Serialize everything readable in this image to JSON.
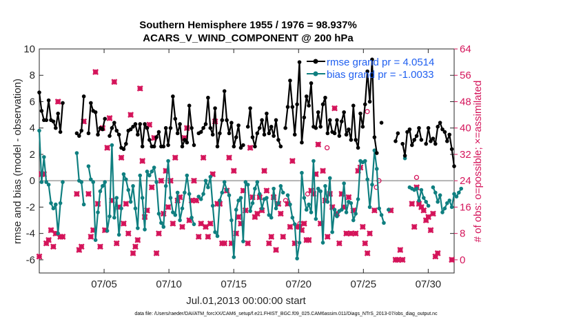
{
  "chart_data": {
    "type": "line",
    "title_line1": "Southern Hemisphere 1955 / 1976 = 98.937%",
    "title_line2": "ACARS_V_WIND_COMPONENT @ 200 hPa",
    "ylabel_left": "rmse and bias (model - observation)",
    "ylabel_right": "# of obs: o=possible; ×=assimilated",
    "xlabel": "Jul.01,2013 00:00:00 start",
    "footer": "data file: /Users/raeder/DAI/ATM_forcXX/CAM6_setup/f.e21.FHIST_BGC.f09_025.CAM6assim.011/Diags_NTrS_2013-07/obs_diag_output.nc",
    "ylim_left": [
      -7,
      10
    ],
    "ylim_right": [
      -4,
      64
    ],
    "xlim": [
      0,
      32
    ],
    "yticks_left": [
      -6,
      -4,
      -2,
      0,
      2,
      4,
      6,
      8,
      10
    ],
    "yticks_right": [
      0,
      8,
      16,
      24,
      32,
      40,
      48,
      56,
      64
    ],
    "xticks": [
      {
        "day": 5,
        "label": "07/05"
      },
      {
        "day": 10,
        "label": "07/10"
      },
      {
        "day": 15,
        "label": "07/15"
      },
      {
        "day": 20,
        "label": "07/20"
      },
      {
        "day": 25,
        "label": "07/25"
      },
      {
        "day": 30,
        "label": "07/30"
      }
    ],
    "colors": {
      "rmse": "#000000",
      "bias": "#0f7f80",
      "obs": "#d4145a",
      "zero_line": "#b3b3b3",
      "legend_text": "#1f5ff0"
    },
    "series": [
      {
        "name": "rmse grand pr = 4.0514",
        "key": "rmse",
        "values": [
          6.7,
          5.3,
          4.6,
          4.6,
          6.1,
          4.6,
          4.5,
          4.0,
          5.1,
          3.7,
          5.9,
          null,
          null,
          null,
          null,
          null,
          3.6,
          3.4,
          3.8,
          6.4,
          null,
          3.6,
          5.9,
          5.3,
          5.2,
          3.5,
          4.0,
          3.9,
          4.7,
          null,
          3.4,
          4.0,
          4.4,
          3.8,
          3.5,
          2.5,
          2.4,
          2.8,
          3.8,
          3.9,
          4.1,
          4.3,
          3.5,
          4.3,
          2.6,
          4.3,
          4.0,
          3.1,
          2.6,
          2.6,
          3.3,
          3.7,
          2.6,
          2.6,
          4.0,
          2.7,
          4.0,
          6.4,
          4.7,
          3.6,
          4.3,
          2.6,
          3.1,
          2.9,
          5.7,
          4.0,
          2.7,
          null,
          3.6,
          3.7,
          4.0,
          4.3,
          6.3,
          4.0,
          3.5,
          5.5,
          2.6,
          3.6,
          4.6,
          6.8,
          4.6,
          3.6,
          4.4,
          2.6,
          3.3,
          4.2,
          2.5,
          2.7,
          null,
          4.1,
          5.5,
          3.3,
          2.6,
          3.6,
          4.0,
          4.6,
          3.5,
          5.1,
          3.6,
          4.1,
          3.4,
          4.6,
          3.1,
          2.6,
          null,
          4.0,
          5.6,
          7.6,
          5.6,
          3.5,
          5.8,
          9.0,
          2.9,
          4.8,
          6.4,
          5.7,
          7.4,
          4.1,
          4.0,
          5.2,
          4.1,
          5.8,
          6.3,
          3.6,
          4.6,
          3.7,
          3.6,
          4.6,
          3.4,
          4.5,
          5.2,
          3.5,
          3.9,
          3.1,
          5.7,
          3.1,
          2.5,
          5.1,
          4.1,
          5.8,
          8.3,
          6.0,
          9.2,
          3.3,
          2.1,
          null,
          4.4,
          null,
          null,
          null,
          null,
          null,
          3.0,
          3.6,
          null,
          2.8,
          1.9,
          3.7,
          3.9,
          2.7,
          3.1,
          3.4,
          4.0,
          3.1,
          null,
          2.8,
          4.0,
          3.0,
          3.2,
          2.8,
          4.1,
          4.4,
          3.9,
          3.7,
          3.0,
          3.5,
          2.4,
          1.1
        ]
      },
      {
        "name": "bias grand pr = -1.0033",
        "key": "bias",
        "values": [
          3.8,
          -0.1,
          1.8,
          -0.1,
          -0.3,
          -1.7,
          -2.1,
          -1.8,
          -4.0,
          -1.7,
          -0.1,
          null,
          null,
          null,
          null,
          null,
          2.1,
          0.0,
          -0.1,
          -1.8,
          null,
          1.1,
          0.1,
          -0.1,
          -4.5,
          -2.4,
          -0.8,
          -0.4,
          -0.1,
          -3.8,
          -2.7,
          2.7,
          -2.8,
          -1.3,
          -4.1,
          -2.1,
          0.5,
          0.1,
          -0.7,
          -1.6,
          -0.4,
          -2.1,
          -3.6,
          0.4,
          -1.3,
          -3.7,
          0.7,
          0.4,
          0.7,
          1.0,
          -0.1,
          -2.5,
          -3.2,
          -3.5,
          -0.4,
          1.5,
          -1.3,
          -2.4,
          -2.6,
          -0.9,
          -3.0,
          -2.1,
          -0.9,
          0.4,
          -1.0,
          -2.8,
          -3.3,
          null,
          -1.2,
          -1.4,
          -1.0,
          0.0,
          -0.5,
          0.3,
          -1.9,
          -3.9,
          -4.2,
          -1.5,
          -0.9,
          -0.1,
          -0.7,
          -1.1,
          -3.0,
          -5.8,
          -2.2,
          -1.5,
          -1.3,
          -4.6,
          -0.1,
          -0.3,
          -2.3,
          -1.7,
          -0.6,
          -0.1,
          -1.0,
          -2.1,
          -1.4,
          -1.3,
          -2.6,
          -2.8,
          -0.6,
          -2.1,
          -1.7,
          -0.4,
          -0.9,
          null,
          -1.1,
          -1.8,
          -2.8,
          -3.3,
          -5.9,
          -4.7,
          0.6,
          -1.3,
          -2.2,
          -1.8,
          -2.4,
          1.5,
          -2.9,
          -0.6,
          -0.8,
          -4.7,
          -0.4,
          -1.6,
          0.2,
          -3.9,
          -2.2,
          -2.7,
          -2.3,
          -2.2,
          -0.2,
          -2.4,
          -1.6,
          -1.7,
          -3.0,
          -2.5,
          -1.4,
          1.5,
          1.4,
          1.5,
          0.1,
          -2.0,
          -0.3,
          2.3,
          0.9,
          -2.1,
          -2.6,
          -3.2,
          null,
          -2.2,
          null,
          null,
          null,
          null,
          null,
          null,
          1.7,
          null,
          -0.5,
          -0.6,
          -0.7,
          -0.6,
          -1.5,
          -0.7,
          -1.3,
          -1.6,
          -1.9,
          null,
          -0.5,
          -0.9,
          -1.6,
          -1.1,
          -2.4,
          -2.1,
          -1.7,
          -1.5,
          -2.0,
          -1.0,
          -1.2,
          -0.9,
          -0.6
        ]
      },
      {
        "name": "nobs assimilated",
        "key": "obs",
        "values": [
          1,
          26,
          26,
          5,
          6,
          9,
          4,
          8,
          48,
          7,
          7,
          null,
          null,
          null,
          null,
          null,
          20,
          3,
          4,
          42,
          null,
          20,
          7,
          9,
          57,
          17,
          4,
          40,
          9,
          34,
          43,
          18,
          54,
          5,
          16,
          31,
          11,
          17,
          8,
          44,
          2,
          4,
          6,
          52,
          30,
          13,
          15,
          41,
          22,
          37,
          2,
          8,
          24,
          14,
          27,
          16,
          24,
          11,
          31,
          18,
          19,
          10,
          37,
          40,
          12,
          18,
          24,
          18,
          7,
          11,
          31,
          10,
          7,
          11,
          26,
          42,
          17,
          17,
          5,
          5,
          21,
          31,
          5,
          27,
          8,
          13,
          11,
          21,
          15,
          5,
          34,
          19,
          13,
          14,
          19,
          15,
          27,
          21,
          5,
          7,
          19,
          3,
          17,
          14,
          7,
          null,
          17,
          10,
          30,
          5,
          10,
          10,
          9,
          11,
          6,
          6,
          21,
          20,
          26,
          35,
          11,
          27,
          18,
          7,
          20,
          16,
          46,
          14,
          5,
          20,
          16,
          8,
          19,
          8,
          15,
          8,
          27,
          28,
          10,
          5,
          2,
          8,
          null,
          15,
          null,
          null,
          null,
          null,
          null,
          null,
          15,
          null,
          0,
          0,
          3,
          0,
          null,
          null,
          null,
          17,
          10,
          22,
          17,
          16,
          15,
          12,
          13,
          9,
          14,
          1,
          2,
          null,
          null,
          null,
          null,
          null,
          0
        ]
      },
      {
        "name": "nobs possible (extra)",
        "key": "obs_possible",
        "values": [
          {
            "day": 19.0,
            "value": 18
          },
          {
            "day": 20.1,
            "value": 11
          },
          {
            "day": 20.7,
            "value": 20
          },
          {
            "day": 22.2,
            "value": 34
          },
          {
            "day": 25.3,
            "value": 45
          },
          {
            "day": 26.0,
            "value": 22
          },
          {
            "day": 26.2,
            "value": 24
          },
          {
            "day": 29.1,
            "value": 25
          }
        ]
      }
    ]
  }
}
